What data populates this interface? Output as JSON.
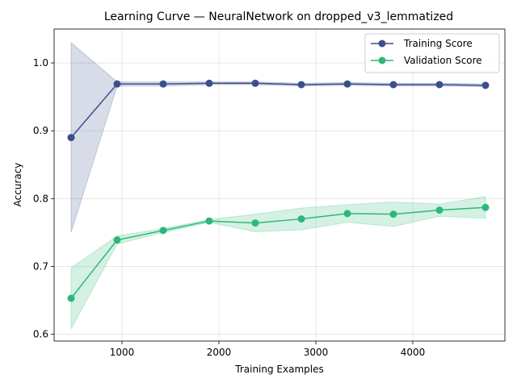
{
  "chart_data": {
    "type": "line",
    "title": "Learning Curve — NeuralNetwork on dropped_v3_lemmatized",
    "xlabel": "Training Examples",
    "ylabel": "Accuracy",
    "xlim": [
      300,
      4950
    ],
    "ylim": [
      0.59,
      1.05
    ],
    "x_ticks": [
      1000,
      2000,
      3000,
      4000
    ],
    "y_ticks": [
      0.6,
      0.7,
      0.8,
      0.9,
      1.0
    ],
    "grid": true,
    "legend_position": "top-right",
    "x": [
      475,
      950,
      1425,
      1900,
      2375,
      2850,
      3325,
      3800,
      4275,
      4750
    ],
    "series": [
      {
        "name": "Training Score",
        "color": "#3b4f8c",
        "values": [
          0.89,
          0.969,
          0.969,
          0.97,
          0.97,
          0.968,
          0.969,
          0.968,
          0.968,
          0.967
        ],
        "lower": [
          0.75,
          0.966,
          0.966,
          0.968,
          0.968,
          0.966,
          0.967,
          0.966,
          0.966,
          0.965
        ],
        "upper": [
          1.03,
          0.972,
          0.972,
          0.972,
          0.972,
          0.97,
          0.971,
          0.97,
          0.97,
          0.969
        ]
      },
      {
        "name": "Validation Score",
        "color": "#2db87a",
        "values": [
          0.653,
          0.739,
          0.753,
          0.767,
          0.764,
          0.77,
          0.778,
          0.777,
          0.783,
          0.787
        ],
        "lower": [
          0.608,
          0.733,
          0.75,
          0.765,
          0.751,
          0.754,
          0.765,
          0.759,
          0.774,
          0.771
        ],
        "upper": [
          0.698,
          0.745,
          0.756,
          0.769,
          0.777,
          0.786,
          0.791,
          0.795,
          0.792,
          0.803
        ]
      }
    ]
  }
}
